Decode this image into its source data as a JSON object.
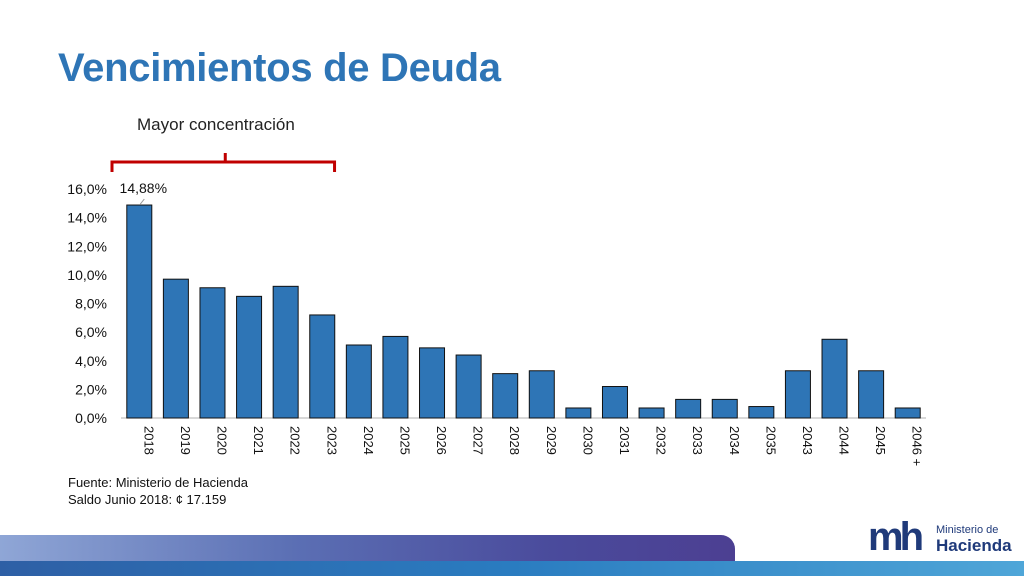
{
  "title": "Vencimientos de Deuda",
  "annotation": "Mayor concentración",
  "footnote": {
    "source": "Fuente: Ministerio de Hacienda",
    "balance": "Saldo Junio 2018: ¢ 17.159"
  },
  "logo": {
    "mark": "mh",
    "line1": "Ministerio de",
    "line2": "Hacienda"
  },
  "colors": {
    "title": "#2e75b6",
    "bar": "#2e75b6",
    "bracket": "#c00000"
  },
  "chart_data": {
    "type": "bar",
    "categories": [
      "2018",
      "2019",
      "2020",
      "2021",
      "2022",
      "2023",
      "2024",
      "2025",
      "2026",
      "2027",
      "2028",
      "2029",
      "2030",
      "2031",
      "2032",
      "2033",
      "2034",
      "2035",
      "2043",
      "2044",
      "2045",
      "2046 +"
    ],
    "values": [
      14.88,
      9.7,
      9.1,
      8.5,
      9.2,
      7.2,
      5.1,
      5.7,
      4.9,
      4.4,
      3.1,
      3.3,
      0.7,
      2.2,
      0.7,
      1.3,
      1.3,
      0.8,
      3.3,
      5.5,
      3.3,
      0.7
    ],
    "ylim": [
      0,
      16
    ],
    "yticks": [
      "0,0%",
      "2,0%",
      "4,0%",
      "6,0%",
      "8,0%",
      "10,0%",
      "12,0%",
      "14,0%",
      "16,0%"
    ],
    "data_labels": [
      {
        "index": 0,
        "text": "14,88%"
      }
    ],
    "title": "",
    "xlabel": "",
    "ylabel": "",
    "grid": false,
    "legend": "none"
  }
}
